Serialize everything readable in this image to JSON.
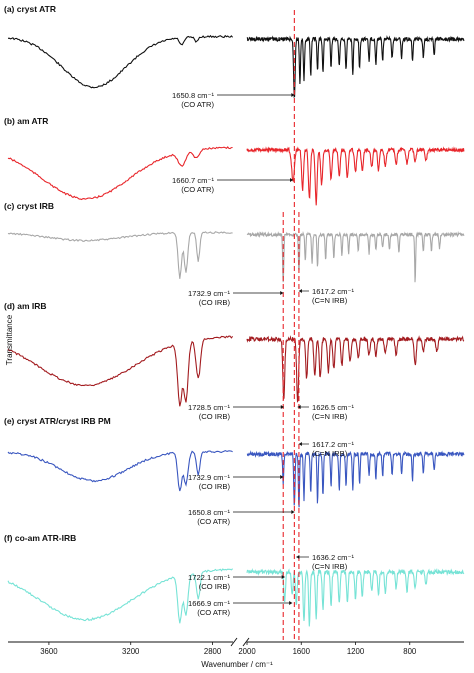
{
  "chart_data": {
    "type": "line",
    "xlabel": "Wavenumber / cm⁻¹",
    "ylabel": "Transmittance",
    "x_axis_break": [
      2700,
      2000
    ],
    "x_range_left": [
      3800,
      2700
    ],
    "x_range_right": [
      2000,
      400
    ],
    "x_ticks_left": [
      3600,
      3200,
      2800
    ],
    "x_ticks_right": [
      2000,
      1600,
      1200,
      800
    ],
    "reference_lines": [
      {
        "x": 1732.9,
        "color": "#e8262b"
      },
      {
        "x": 1650.8,
        "color": "#e8262b"
      },
      {
        "x": 1617.2,
        "color": "#e8262b"
      }
    ],
    "series": [
      {
        "label": "(a) cryst ATR",
        "color": "#111111",
        "broad_left": [
          {
            "x": 3380,
            "depth": 0.8,
            "width": 220
          }
        ],
        "bands": [
          [
            2950,
            0.12,
            15
          ],
          [
            2880,
            0.08,
            12
          ],
          [
            1650.8,
            0.95,
            8
          ],
          [
            1610,
            0.7,
            6
          ],
          [
            1580,
            0.65,
            6
          ],
          [
            1530,
            0.6,
            6
          ],
          [
            1480,
            0.5,
            6
          ],
          [
            1440,
            0.55,
            6
          ],
          [
            1380,
            0.45,
            6
          ],
          [
            1320,
            0.45,
            6
          ],
          [
            1270,
            0.5,
            6
          ],
          [
            1220,
            0.55,
            6
          ],
          [
            1170,
            0.45,
            6
          ],
          [
            1100,
            0.35,
            6
          ],
          [
            1050,
            0.4,
            6
          ],
          [
            1000,
            0.35,
            6
          ],
          [
            930,
            0.3,
            6
          ],
          [
            860,
            0.3,
            6
          ],
          [
            780,
            0.35,
            6
          ],
          [
            700,
            0.3,
            6
          ],
          [
            620,
            0.25,
            6
          ]
        ]
      },
      {
        "label": "(b) am ATR",
        "color": "#e8262b",
        "broad_left": [
          {
            "x": 3420,
            "depth": 0.9,
            "width": 300
          }
        ],
        "bands": [
          [
            2950,
            0.25,
            25
          ],
          [
            2880,
            0.15,
            20
          ],
          [
            1660.7,
            0.55,
            14
          ],
          [
            1590,
            0.7,
            10
          ],
          [
            1540,
            0.85,
            10
          ],
          [
            1490,
            0.95,
            10
          ],
          [
            1450,
            0.6,
            10
          ],
          [
            1380,
            0.5,
            10
          ],
          [
            1320,
            0.45,
            10
          ],
          [
            1260,
            0.5,
            10
          ],
          [
            1200,
            0.4,
            10
          ],
          [
            1150,
            0.35,
            10
          ],
          [
            1080,
            0.3,
            10
          ],
          [
            1030,
            0.35,
            10
          ],
          [
            980,
            0.3,
            10
          ],
          [
            900,
            0.25,
            10
          ],
          [
            820,
            0.25,
            10
          ],
          [
            760,
            0.2,
            10
          ],
          [
            680,
            0.2,
            10
          ]
        ]
      },
      {
        "label": "(c) cryst IRB",
        "color": "#a8a8a8",
        "broad_left": [
          {
            "x": 3420,
            "depth": 0.15,
            "width": 260
          }
        ],
        "bands": [
          [
            2960,
            0.85,
            12
          ],
          [
            2930,
            0.75,
            12
          ],
          [
            2870,
            0.55,
            10
          ],
          [
            1732.9,
            0.9,
            6
          ],
          [
            1617.2,
            0.7,
            6
          ],
          [
            1570,
            0.5,
            6
          ],
          [
            1520,
            0.55,
            6
          ],
          [
            1480,
            0.6,
            6
          ],
          [
            1420,
            0.5,
            6
          ],
          [
            1360,
            0.45,
            6
          ],
          [
            1300,
            0.4,
            6
          ],
          [
            1250,
            0.35,
            6
          ],
          [
            1180,
            0.3,
            6
          ],
          [
            1100,
            0.35,
            6
          ],
          [
            1050,
            0.3,
            6
          ],
          [
            1000,
            0.25,
            6
          ],
          [
            950,
            0.3,
            6
          ],
          [
            880,
            0.35,
            6
          ],
          [
            760,
            0.9,
            5
          ],
          [
            700,
            0.3,
            6
          ],
          [
            640,
            0.3,
            6
          ],
          [
            580,
            0.25,
            6
          ]
        ]
      },
      {
        "label": "(d) am IRB",
        "color": "#a31c20",
        "broad_left": [
          {
            "x": 3420,
            "depth": 0.75,
            "width": 330
          }
        ],
        "bands": [
          [
            2960,
            0.95,
            15
          ],
          [
            2930,
            0.9,
            15
          ],
          [
            2870,
            0.6,
            15
          ],
          [
            1728.5,
            0.95,
            10
          ],
          [
            1626.5,
            0.95,
            10
          ],
          [
            1560,
            0.6,
            10
          ],
          [
            1500,
            0.55,
            10
          ],
          [
            1460,
            0.6,
            10
          ],
          [
            1400,
            0.5,
            10
          ],
          [
            1360,
            0.45,
            10
          ],
          [
            1300,
            0.4,
            10
          ],
          [
            1240,
            0.35,
            10
          ],
          [
            1180,
            0.3,
            10
          ],
          [
            1100,
            0.25,
            10
          ],
          [
            1050,
            0.25,
            10
          ],
          [
            980,
            0.2,
            10
          ],
          [
            900,
            0.25,
            10
          ],
          [
            760,
            0.4,
            10
          ],
          [
            700,
            0.2,
            10
          ],
          [
            600,
            0.2,
            10
          ]
        ]
      },
      {
        "label": "(e) cryst ATR/cryst IRB PM",
        "color": "#3a57c0",
        "broad_left": [
          {
            "x": 3380,
            "depth": 0.45,
            "width": 230
          }
        ],
        "bands": [
          [
            2960,
            0.6,
            14
          ],
          [
            2930,
            0.5,
            14
          ],
          [
            2870,
            0.35,
            12
          ],
          [
            1732.9,
            0.45,
            6
          ],
          [
            1650.8,
            0.8,
            7
          ],
          [
            1617.2,
            0.85,
            6
          ],
          [
            1580,
            0.7,
            6
          ],
          [
            1530,
            0.6,
            6
          ],
          [
            1480,
            0.75,
            6
          ],
          [
            1440,
            0.65,
            6
          ],
          [
            1380,
            0.5,
            6
          ],
          [
            1320,
            0.55,
            6
          ],
          [
            1270,
            0.5,
            6
          ],
          [
            1220,
            0.55,
            6
          ],
          [
            1170,
            0.45,
            6
          ],
          [
            1100,
            0.35,
            6
          ],
          [
            1050,
            0.4,
            6
          ],
          [
            1000,
            0.35,
            6
          ],
          [
            930,
            0.3,
            6
          ],
          [
            860,
            0.3,
            6
          ],
          [
            780,
            0.4,
            6
          ],
          [
            700,
            0.3,
            6
          ],
          [
            620,
            0.25,
            6
          ]
        ]
      },
      {
        "label": "(f) co-am ATR-IRB",
        "color": "#77e3d6",
        "broad_left": [
          {
            "x": 3420,
            "depth": 0.75,
            "width": 320
          }
        ],
        "bands": [
          [
            2960,
            0.7,
            14
          ],
          [
            2930,
            0.6,
            14
          ],
          [
            2870,
            0.4,
            12
          ],
          [
            1722.1,
            0.45,
            8
          ],
          [
            1666.9,
            0.35,
            8
          ],
          [
            1636.2,
            0.5,
            8
          ],
          [
            1580,
            0.75,
            8
          ],
          [
            1540,
            0.8,
            8
          ],
          [
            1490,
            0.7,
            8
          ],
          [
            1440,
            0.55,
            8
          ],
          [
            1380,
            0.5,
            8
          ],
          [
            1320,
            0.45,
            8
          ],
          [
            1260,
            0.45,
            8
          ],
          [
            1200,
            0.4,
            8
          ],
          [
            1150,
            0.35,
            8
          ],
          [
            1080,
            0.3,
            8
          ],
          [
            1030,
            0.35,
            8
          ],
          [
            980,
            0.3,
            8
          ],
          [
            900,
            0.25,
            8
          ],
          [
            820,
            0.3,
            8
          ],
          [
            760,
            0.25,
            8
          ],
          [
            680,
            0.2,
            8
          ]
        ]
      }
    ],
    "annotations": [
      {
        "panel": 0,
        "lines": [
          "1650.8 cm⁻¹",
          "(CO ATR)"
        ],
        "x": 1650.8
      },
      {
        "panel": 1,
        "lines": [
          "1660.7 cm⁻¹",
          "(CO ATR)"
        ],
        "x": 1660.7
      },
      {
        "panel": 2,
        "lines": [
          "1617.2 cm⁻¹",
          "(C=N IRB)"
        ],
        "x": 1617.2
      },
      {
        "panel": 2,
        "lines": [
          "1732.9 cm⁻¹",
          "(CO IRB)"
        ],
        "x": 1732.9
      },
      {
        "panel": 3,
        "lines": [
          "1728.5 cm⁻¹",
          "(CO IRB)"
        ],
        "x": 1728.5
      },
      {
        "panel": 3,
        "lines": [
          "1626.5 cm⁻¹",
          "(C=N IRB)"
        ],
        "x": 1626.5
      },
      {
        "panel": 4,
        "lines": [
          "1617.2 cm⁻¹",
          "(C=N IRB)"
        ],
        "x": 1617.2
      },
      {
        "panel": 4,
        "lines": [
          "1732.9 cm⁻¹",
          "(CO IRB)"
        ],
        "x": 1732.9
      },
      {
        "panel": 4,
        "lines": [
          "1650.8 cm⁻¹",
          "(CO ATR)"
        ],
        "x": 1650.8
      },
      {
        "panel": 5,
        "lines": [
          "1636.2 cm⁻¹",
          "(C=N IRB)"
        ],
        "x": 1636.2
      },
      {
        "panel": 5,
        "lines": [
          "1722.1 cm⁻¹",
          "(CO IRB)"
        ],
        "x": 1722.1
      },
      {
        "panel": 5,
        "lines": [
          "1666.9 cm⁻¹",
          "(CO ATR)"
        ],
        "x": 1666.9
      }
    ]
  }
}
